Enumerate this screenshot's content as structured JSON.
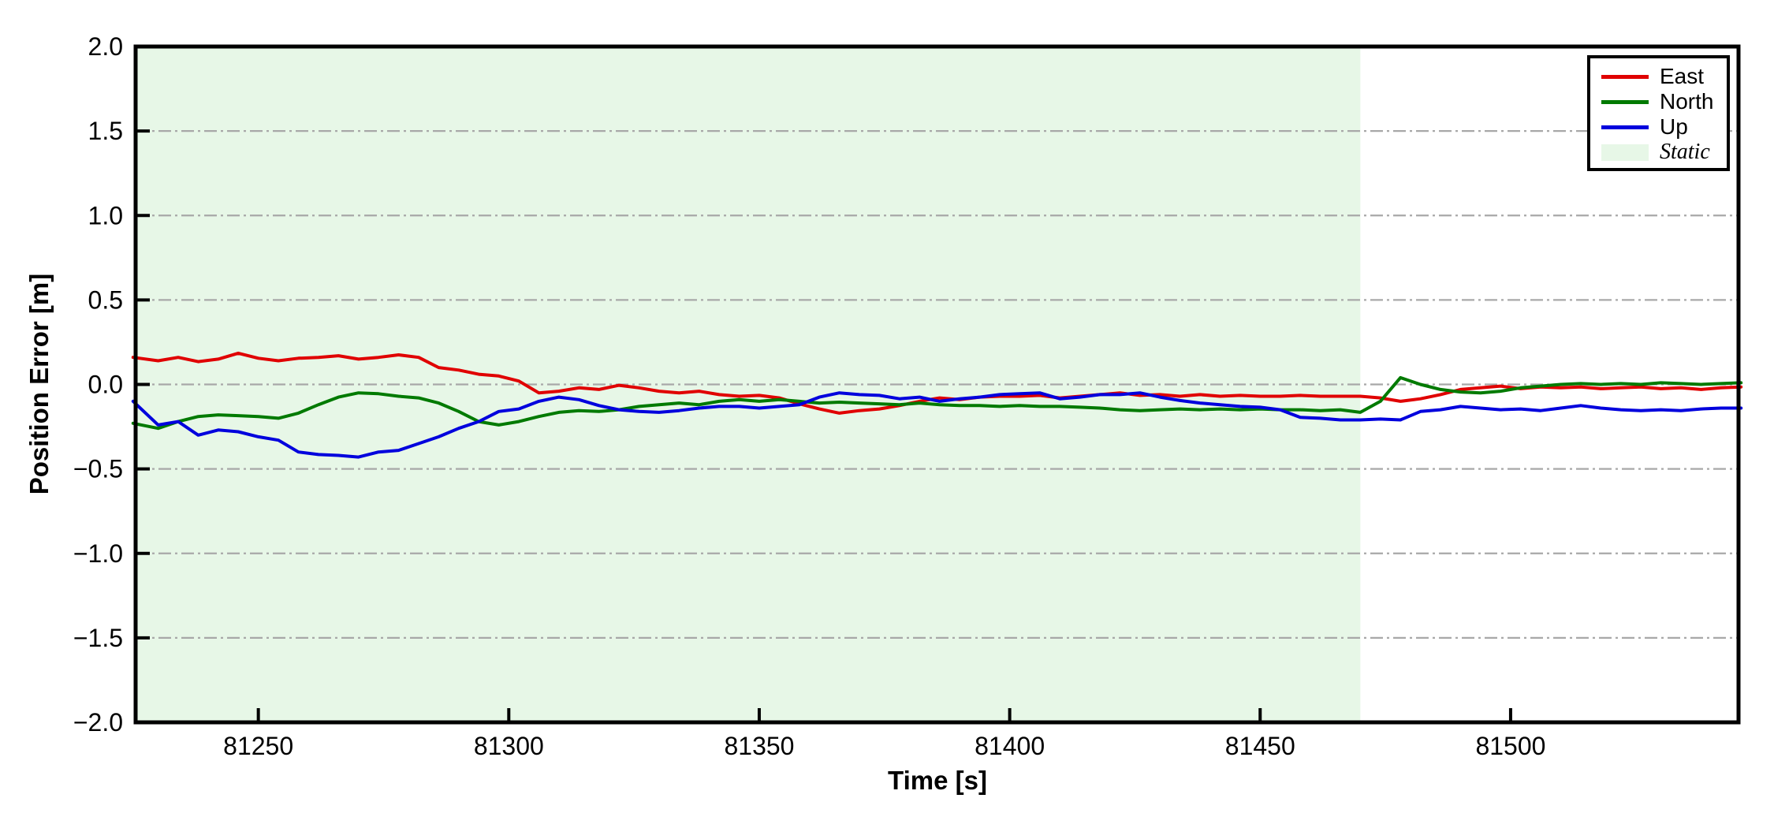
{
  "chart_data": {
    "type": "line",
    "title": "",
    "xlabel": "Time [s]",
    "ylabel": "Position Error [m]",
    "xlim": [
      81225.5,
      81545.5
    ],
    "ylim": [
      -2.0,
      2.0
    ],
    "x_ticks": [
      81250,
      81300,
      81350,
      81400,
      81450,
      81500
    ],
    "x_tick_labels": [
      "81250",
      "81300",
      "81350",
      "81400",
      "81450",
      "81500"
    ],
    "y_ticks": [
      2.0,
      1.5,
      1.0,
      0.5,
      0.0,
      -0.5,
      -1.0,
      -1.5,
      -2.0
    ],
    "y_tick_labels": [
      "2.0",
      "1.5",
      "1.0",
      "0.5",
      "0.0",
      "−0.5",
      "−1.0",
      "−1.5",
      "−2.0"
    ],
    "grid": {
      "on": true,
      "style": "dash-dot",
      "color": "#a8a8a8",
      "values": [
        1.5,
        1.0,
        0.5,
        0.0,
        -0.5,
        -1.0,
        -1.5
      ]
    },
    "frame_color": "#000000",
    "background": "#ffffff",
    "static_region": {
      "label": "Static",
      "x_start": 81225.5,
      "x_end": 81470,
      "color": "#e7f7e7"
    },
    "legend": {
      "position": "upper right",
      "entries": [
        "East",
        "North",
        "Up",
        "Static"
      ]
    },
    "x": [
      81225,
      81230,
      81234,
      81238,
      81242,
      81246,
      81250,
      81254,
      81258,
      81262,
      81266,
      81270,
      81274,
      81278,
      81282,
      81286,
      81290,
      81294,
      81298,
      81302,
      81306,
      81310,
      81314,
      81318,
      81322,
      81326,
      81330,
      81334,
      81338,
      81342,
      81346,
      81350,
      81354,
      81358,
      81362,
      81366,
      81370,
      81374,
      81378,
      81382,
      81386,
      81390,
      81394,
      81398,
      81402,
      81406,
      81410,
      81414,
      81418,
      81422,
      81426,
      81430,
      81434,
      81438,
      81442,
      81446,
      81450,
      81454,
      81458,
      81462,
      81466,
      81470,
      81474,
      81478,
      81482,
      81486,
      81490,
      81494,
      81498,
      81502,
      81506,
      81510,
      81514,
      81518,
      81522,
      81526,
      81530,
      81534,
      81538,
      81542,
      81546
    ],
    "series": [
      {
        "name": "East",
        "color": "#e00000",
        "values": [
          0.16,
          0.14,
          0.16,
          0.135,
          0.15,
          0.185,
          0.155,
          0.14,
          0.155,
          0.16,
          0.17,
          0.15,
          0.16,
          0.175,
          0.16,
          0.1,
          0.085,
          0.06,
          0.05,
          0.02,
          -0.05,
          -0.04,
          -0.02,
          -0.03,
          -0.005,
          -0.02,
          -0.04,
          -0.05,
          -0.04,
          -0.06,
          -0.07,
          -0.065,
          -0.08,
          -0.115,
          -0.145,
          -0.17,
          -0.155,
          -0.145,
          -0.125,
          -0.1,
          -0.08,
          -0.09,
          -0.075,
          -0.07,
          -0.07,
          -0.065,
          -0.08,
          -0.07,
          -0.06,
          -0.05,
          -0.065,
          -0.06,
          -0.07,
          -0.06,
          -0.07,
          -0.065,
          -0.07,
          -0.07,
          -0.065,
          -0.07,
          -0.07,
          -0.07,
          -0.08,
          -0.1,
          -0.085,
          -0.06,
          -0.03,
          -0.02,
          -0.01,
          -0.025,
          -0.015,
          -0.02,
          -0.015,
          -0.025,
          -0.02,
          -0.015,
          -0.025,
          -0.02,
          -0.03,
          -0.02,
          -0.015
        ]
      },
      {
        "name": "North",
        "color": "#007a00",
        "values": [
          -0.23,
          -0.26,
          -0.22,
          -0.19,
          -0.18,
          -0.185,
          -0.19,
          -0.2,
          -0.17,
          -0.12,
          -0.075,
          -0.05,
          -0.055,
          -0.07,
          -0.08,
          -0.11,
          -0.16,
          -0.22,
          -0.24,
          -0.22,
          -0.19,
          -0.165,
          -0.155,
          -0.16,
          -0.15,
          -0.13,
          -0.12,
          -0.11,
          -0.12,
          -0.1,
          -0.09,
          -0.1,
          -0.09,
          -0.1,
          -0.11,
          -0.105,
          -0.11,
          -0.115,
          -0.12,
          -0.11,
          -0.12,
          -0.125,
          -0.125,
          -0.13,
          -0.125,
          -0.13,
          -0.13,
          -0.135,
          -0.14,
          -0.15,
          -0.155,
          -0.15,
          -0.145,
          -0.15,
          -0.145,
          -0.15,
          -0.145,
          -0.15,
          -0.15,
          -0.155,
          -0.15,
          -0.165,
          -0.1,
          0.04,
          0.0,
          -0.03,
          -0.045,
          -0.05,
          -0.04,
          -0.02,
          -0.01,
          0.0,
          0.005,
          0.0,
          0.005,
          0.0,
          0.01,
          0.005,
          0.0,
          0.005,
          0.01
        ]
      },
      {
        "name": "Up",
        "color": "#0000dd",
        "values": [
          -0.1,
          -0.24,
          -0.22,
          -0.3,
          -0.27,
          -0.28,
          -0.31,
          -0.33,
          -0.4,
          -0.415,
          -0.42,
          -0.43,
          -0.4,
          -0.39,
          -0.35,
          -0.31,
          -0.26,
          -0.22,
          -0.16,
          -0.145,
          -0.1,
          -0.075,
          -0.09,
          -0.125,
          -0.15,
          -0.16,
          -0.165,
          -0.155,
          -0.14,
          -0.13,
          -0.13,
          -0.14,
          -0.13,
          -0.12,
          -0.075,
          -0.05,
          -0.06,
          -0.065,
          -0.085,
          -0.075,
          -0.1,
          -0.085,
          -0.075,
          -0.06,
          -0.055,
          -0.05,
          -0.085,
          -0.075,
          -0.06,
          -0.06,
          -0.05,
          -0.075,
          -0.095,
          -0.11,
          -0.12,
          -0.13,
          -0.135,
          -0.15,
          -0.195,
          -0.2,
          -0.21,
          -0.21,
          -0.205,
          -0.21,
          -0.16,
          -0.15,
          -0.13,
          -0.14,
          -0.15,
          -0.145,
          -0.155,
          -0.14,
          -0.125,
          -0.14,
          -0.15,
          -0.155,
          -0.15,
          -0.155,
          -0.145,
          -0.14,
          -0.14
        ]
      }
    ]
  }
}
